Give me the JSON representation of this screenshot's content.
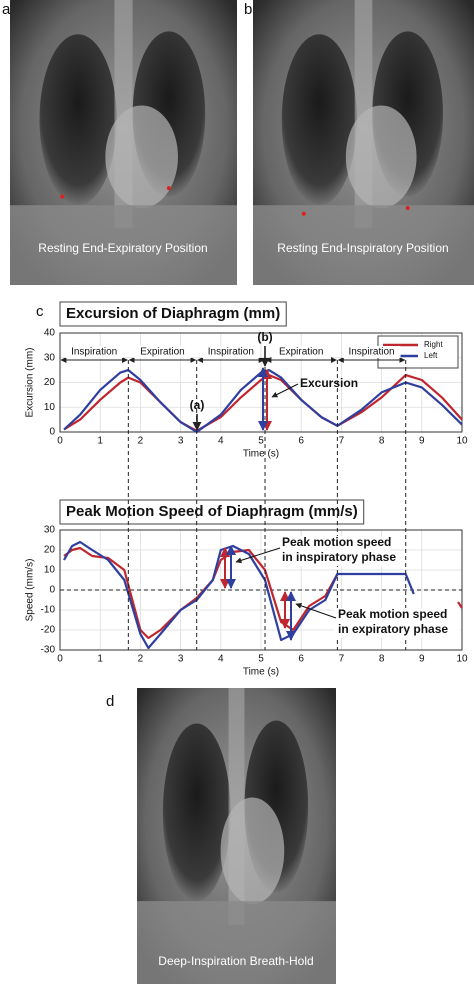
{
  "panels": {
    "a": {
      "label": "a",
      "caption": "Resting End-Expiratory Position"
    },
    "b": {
      "label": "b",
      "caption": "Resting End-Inspiratory Position"
    },
    "c": {
      "label": "c"
    },
    "d": {
      "label": "d",
      "caption": "Deep-Inspiration Breath-Hold"
    }
  },
  "chart_data": [
    {
      "type": "line",
      "title": "Excursion of Diaphragm (mm)",
      "xlabel": "Time (s)",
      "ylabel": "Excursion (mm)",
      "x": [
        0.1,
        0.5,
        1,
        1.5,
        1.7,
        2,
        2.5,
        3,
        3.4,
        4,
        4.5,
        5,
        5.2,
        5.5,
        6,
        6.5,
        6.9,
        7.5,
        8,
        8.6,
        9,
        9.5,
        10
      ],
      "series": [
        {
          "name": "Right",
          "color": "#c0262d",
          "values": [
            1,
            5,
            13,
            20,
            22,
            20,
            12,
            4,
            0.5,
            6,
            14,
            21,
            23,
            21,
            13,
            6,
            2.5,
            8,
            14,
            23,
            21,
            14,
            5
          ]
        },
        {
          "name": "Left",
          "color": "#2f3fa0",
          "values": [
            1,
            7,
            17,
            24,
            25,
            21,
            12,
            4,
            0,
            7,
            17,
            24,
            25,
            22,
            13,
            6,
            2.5,
            9,
            16,
            20,
            18,
            11,
            3
          ]
        }
      ],
      "xlim": [
        0,
        10
      ],
      "ylim": [
        0,
        40
      ],
      "xticks": [
        0,
        1,
        2,
        3,
        4,
        5,
        6,
        7,
        8,
        9,
        10
      ],
      "yticks": [
        0,
        10,
        20,
        30,
        40
      ],
      "grid": true,
      "legend": "upper right",
      "phase_boundaries": [
        1.7,
        3.4,
        5.1,
        6.9,
        8.6
      ],
      "phases": [
        "Inspiration",
        "Expiration",
        "Inspiration",
        "Expiration",
        "Inspiration"
      ],
      "annotations": [
        "(a)",
        "(b)",
        "Excursion"
      ]
    },
    {
      "type": "line",
      "title": "Peak Motion Speed of Diaphragm (mm/s)",
      "xlabel": "Time (s)",
      "ylabel": "Speed (mm/s)",
      "x": [
        0.1,
        0.3,
        0.5,
        0.8,
        1.2,
        1.6,
        2,
        2.2,
        2.5,
        3,
        3.4,
        3.8,
        4,
        4.3,
        4.7,
        5.1,
        5.5,
        5.8,
        6.2,
        6.6,
        6.9,
        8.6,
        8.8,
        9.9,
        10
      ],
      "series": [
        {
          "name": "Right",
          "color": "#c0262d",
          "values": [
            17,
            20,
            21,
            17,
            16,
            10,
            -20,
            -24,
            -20,
            -10,
            -4,
            5,
            15,
            19,
            20,
            10,
            -16,
            -20,
            -8,
            -3,
            8,
            null,
            null,
            -6,
            -9
          ]
        },
        {
          "name": "Left",
          "color": "#2f3fa0",
          "values": [
            15,
            22,
            24,
            20,
            15,
            5,
            -22,
            -29,
            -22,
            -10,
            -5,
            5,
            20,
            22,
            18,
            5,
            -25,
            -22,
            -10,
            -5,
            8,
            8,
            -2,
            null,
            null
          ]
        }
      ],
      "xlim": [
        0,
        10
      ],
      "ylim": [
        -30,
        30
      ],
      "xticks": [
        0,
        1,
        2,
        3,
        4,
        5,
        6,
        7,
        8,
        9,
        10
      ],
      "yticks": [
        -30,
        -20,
        -10,
        0,
        10,
        20,
        30
      ],
      "grid": true,
      "reference_line": 0,
      "annotations": [
        "Peak motion speed",
        "in inspiratory phase",
        "Peak motion speed",
        "in expiratory phase"
      ]
    }
  ]
}
